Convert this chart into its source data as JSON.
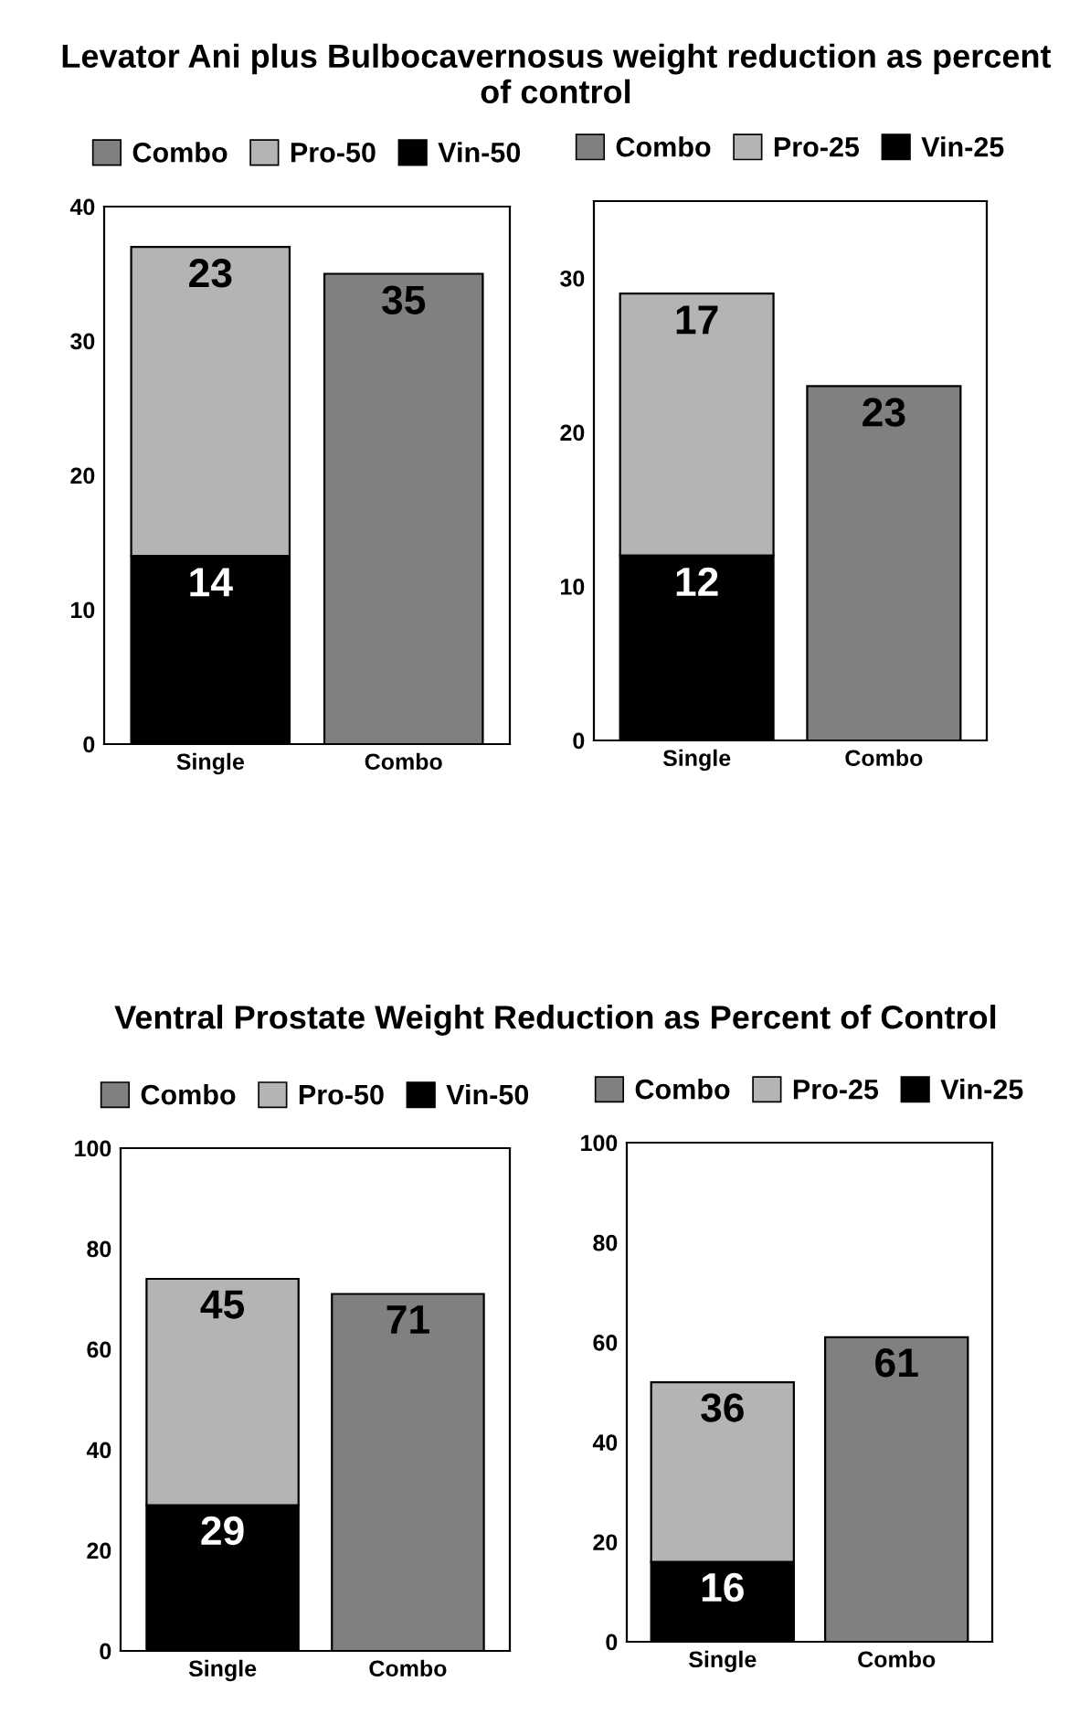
{
  "chart_data": [
    {
      "type": "bar",
      "title": "Levator Ani plus Bulbocavernosus weight reduction as percent of control",
      "categories": [
        "Single",
        "Combo"
      ],
      "stacked": true,
      "series": [
        {
          "name": "Vin-50",
          "color": "#000000",
          "values": [
            14,
            null
          ]
        },
        {
          "name": "Pro-50",
          "color": "#b4b4b4",
          "values": [
            23,
            null
          ]
        },
        {
          "name": "Combo",
          "color": "#808080",
          "values": [
            null,
            35
          ]
        }
      ],
      "ylim": [
        0,
        40
      ],
      "yticks": [
        0,
        10,
        20,
        30,
        40
      ],
      "data_labels": true,
      "legend": "top",
      "grid": false
    },
    {
      "type": "bar",
      "categories": [
        "Single",
        "Combo"
      ],
      "stacked": true,
      "series": [
        {
          "name": "Vin-25",
          "color": "#000000",
          "values": [
            12,
            null
          ]
        },
        {
          "name": "Pro-25",
          "color": "#b4b4b4",
          "values": [
            17,
            null
          ]
        },
        {
          "name": "Combo",
          "color": "#808080",
          "values": [
            null,
            23
          ]
        }
      ],
      "ylim": [
        0,
        35
      ],
      "yticks": [
        0,
        10,
        20,
        30
      ],
      "data_labels": true,
      "legend": "top",
      "grid": false
    },
    {
      "type": "bar",
      "title": "Ventral Prostate Weight Reduction as Percent of Control",
      "categories": [
        "Single",
        "Combo"
      ],
      "stacked": true,
      "series": [
        {
          "name": "Vin-50",
          "color": "#000000",
          "values": [
            29,
            null
          ]
        },
        {
          "name": "Pro-50",
          "color": "#b4b4b4",
          "values": [
            45,
            null
          ]
        },
        {
          "name": "Combo",
          "color": "#808080",
          "values": [
            null,
            71
          ]
        }
      ],
      "ylim": [
        0,
        100
      ],
      "yticks": [
        0,
        20,
        40,
        60,
        80,
        100
      ],
      "data_labels": true,
      "legend": "top",
      "grid": false
    },
    {
      "type": "bar",
      "categories": [
        "Single",
        "Combo"
      ],
      "stacked": true,
      "series": [
        {
          "name": "Vin-25",
          "color": "#000000",
          "values": [
            16,
            null
          ]
        },
        {
          "name": "Pro-25",
          "color": "#b4b4b4",
          "values": [
            36,
            null
          ]
        },
        {
          "name": "Combo",
          "color": "#808080",
          "values": [
            null,
            61
          ]
        }
      ],
      "ylim": [
        0,
        100
      ],
      "yticks": [
        0,
        20,
        40,
        60,
        80,
        100
      ],
      "data_labels": true,
      "legend": "top",
      "grid": false
    }
  ]
}
